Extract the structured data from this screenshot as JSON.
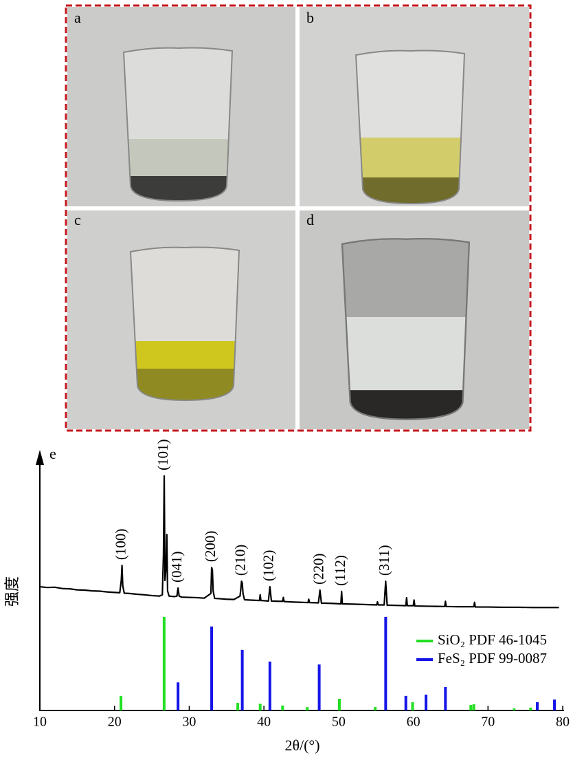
{
  "photos": [
    {
      "label": "a"
    },
    {
      "label": "b"
    },
    {
      "label": "c"
    },
    {
      "label": "d"
    }
  ],
  "chart_data": {
    "type": "line",
    "panel_label": "e",
    "xlabel": "2θ/(°)",
    "ylabel": "强度",
    "xlim": [
      10,
      80
    ],
    "xticks": [
      10,
      20,
      30,
      40,
      50,
      60,
      70,
      80
    ],
    "ylim": [
      0,
      100
    ],
    "color": "#000000",
    "x": [
      10,
      11,
      12,
      13,
      14,
      15,
      16,
      17,
      18,
      19,
      20,
      20.7,
      20.9,
      21.0,
      21.1,
      21.3,
      22,
      23,
      24,
      25,
      26,
      26.4,
      26.55,
      26.65,
      26.75,
      26.9,
      27.0,
      27.1,
      27.3,
      28,
      28.35,
      28.5,
      28.65,
      29,
      30,
      31,
      32,
      32.9,
      33.0,
      33.1,
      33.2,
      33.4,
      34,
      35,
      36,
      36.8,
      36.9,
      37.0,
      37.1,
      37.2,
      37.4,
      38,
      39.4,
      39.5,
      39.6,
      40.6,
      40.8,
      41.0,
      42,
      42.5,
      42.6,
      42.7,
      44,
      45.9,
      46.0,
      46.1,
      47.3,
      47.5,
      47.7,
      49,
      50.3,
      50.4,
      50.5,
      52,
      54,
      55.1,
      55.2,
      55.3,
      56.1,
      56.3,
      56.5,
      58,
      59.0,
      59.1,
      59.2,
      60.0,
      60.1,
      60.2,
      62,
      64.2,
      64.3,
      64.4,
      66,
      68.1,
      68.2,
      68.3,
      70,
      72,
      74,
      76,
      78,
      79.5
    ],
    "values": [
      47.6,
      47.3,
      47.4,
      46.9,
      46.8,
      46.4,
      46.3,
      46.0,
      45.9,
      45.6,
      45.4,
      45.3,
      50,
      55.8,
      48,
      45.1,
      45.0,
      44.7,
      44.5,
      44.2,
      44.0,
      44.5,
      60,
      90.2,
      50,
      55,
      67.7,
      46,
      44,
      43.8,
      44,
      47.1,
      44,
      43.6,
      43.5,
      43.4,
      43.2,
      45,
      55,
      54,
      46,
      43.1,
      43.0,
      42.8,
      42.7,
      44,
      46.5,
      49.7,
      49,
      45,
      42.6,
      42.5,
      42.3,
      44.5,
      42.3,
      42.1,
      47.6,
      42.1,
      42,
      42,
      43.5,
      41.9,
      41.7,
      41.5,
      42.8,
      41.5,
      41.4,
      46.3,
      41.3,
      41.2,
      41,
      45.8,
      41,
      40.9,
      40.7,
      40.6,
      41.8,
      40.6,
      40.6,
      49.7,
      40.5,
      40.4,
      40.3,
      43.4,
      40.3,
      40.3,
      42.5,
      40.2,
      40.1,
      40,
      42,
      40,
      39.9,
      39.9,
      41.6,
      39.8,
      39.8,
      39.7,
      39.7,
      39.6,
      39.6,
      39.6
    ],
    "peak_labels": [
      {
        "label": "(100)",
        "x": 21.0,
        "value": 55.8
      },
      {
        "label": "(101)",
        "x": 26.65,
        "value": 90.2
      },
      {
        "label": "(041)",
        "x": 28.5,
        "value": 47.1
      },
      {
        "label": "(200)",
        "x": 33.0,
        "value": 55
      },
      {
        "label": "(210)",
        "x": 37.0,
        "value": 49.7
      },
      {
        "label": "(102)",
        "x": 40.8,
        "value": 47.6
      },
      {
        "label": "(220)",
        "x": 47.5,
        "value": 46.3
      },
      {
        "label": "(112)",
        "x": 50.4,
        "value": 45.8
      },
      {
        "label": "(311)",
        "x": 56.3,
        "value": 49.7
      }
    ],
    "series": [
      {
        "name": "SiO₂ PDF 46-1045",
        "color": "#22e022",
        "x": [
          20.86,
          26.64,
          36.5,
          39.5,
          42.5,
          45.8,
          50.1,
          54.9,
          59.9,
          67.7,
          68.1,
          73.5,
          75.7
        ],
        "values": [
          5.6,
          36,
          2.9,
          2.6,
          1.9,
          1.3,
          4.5,
          1.3,
          3.2,
          2.1,
          2.4,
          0.8,
          1.1
        ]
      },
      {
        "name": "FeS₂ PDF 99-0087",
        "color": "#1515e8",
        "x": [
          28.5,
          33.0,
          37.1,
          40.8,
          47.4,
          56.3,
          59.0,
          61.7,
          64.3,
          76.6,
          78.9
        ],
        "values": [
          10.8,
          32.3,
          23.3,
          18.8,
          17.7,
          36,
          5.6,
          6.1,
          9,
          3.2,
          4.2
        ]
      }
    ]
  }
}
